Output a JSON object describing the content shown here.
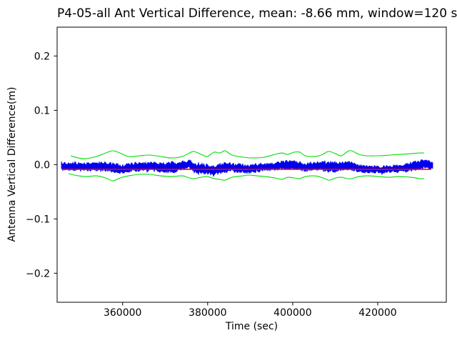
{
  "chart_data": {
    "type": "line",
    "title": "P4-05-all Ant Vertical Difference, mean: -8.66 mm, window=120 secs",
    "xlabel": "Time (sec)",
    "ylabel": "Antenna Vertical Difference(m)",
    "xlim": [
      344600,
      436120
    ],
    "ylim": [
      -0.2535,
      0.2531
    ],
    "xticks": [
      360000,
      380000,
      400000,
      420000
    ],
    "yticks": [
      0.2,
      0.1,
      0.0,
      -0.1,
      -0.2
    ],
    "grid": false,
    "legend": null,
    "mean_mm": -8.66,
    "window_secs": 120,
    "colors": {
      "data_band": "#0000ee",
      "mean_line": "#ff0000",
      "envelope": "#00dd00",
      "frame": "#000000"
    },
    "series": [
      {
        "name": "antenna-vertical-difference",
        "style": "noisy-band",
        "color": "#0000ee",
        "points": [
          [
            345600,
            -0.0036,
            0.0053
          ],
          [
            348000,
            -0.0036,
            0.0066
          ],
          [
            351300,
            -0.0049,
            0.0066
          ],
          [
            354700,
            -0.0036,
            0.0066
          ],
          [
            357700,
            -0.0049,
            0.0079
          ],
          [
            359700,
            -0.0088,
            0.0066
          ],
          [
            362200,
            -0.0049,
            0.0066
          ],
          [
            364800,
            -0.0036,
            0.0066
          ],
          [
            367300,
            -0.0036,
            0.0066
          ],
          [
            370100,
            -0.0049,
            0.0079
          ],
          [
            372300,
            -0.0049,
            0.0079
          ],
          [
            374500,
            -0.0009,
            0.0066
          ],
          [
            375800,
            0.0004,
            0.0066
          ],
          [
            377300,
            -0.0075,
            0.0079
          ],
          [
            379500,
            -0.0088,
            0.0079
          ],
          [
            381500,
            -0.0101,
            0.0079
          ],
          [
            383500,
            -0.0062,
            0.0079
          ],
          [
            385200,
            -0.0049,
            0.0066
          ],
          [
            387400,
            -0.0062,
            0.0066
          ],
          [
            389100,
            -0.0088,
            0.0066
          ],
          [
            391300,
            -0.0062,
            0.0066
          ],
          [
            393000,
            -0.0049,
            0.0066
          ],
          [
            394600,
            -0.0049,
            0.0053
          ],
          [
            396300,
            -0.0022,
            0.0066
          ],
          [
            398000,
            -0.0009,
            0.0066
          ],
          [
            399700,
            -0.0009,
            0.0066
          ],
          [
            401400,
            -0.0022,
            0.0066
          ],
          [
            403000,
            -0.0049,
            0.0066
          ],
          [
            404700,
            -0.0036,
            0.0053
          ],
          [
            406400,
            -0.0022,
            0.0066
          ],
          [
            408100,
            -0.0036,
            0.0079
          ],
          [
            409700,
            -0.0049,
            0.0079
          ],
          [
            411400,
            -0.0036,
            0.0066
          ],
          [
            413400,
            -0.0022,
            0.0066
          ],
          [
            415100,
            -0.0062,
            0.0053
          ],
          [
            417100,
            -0.0088,
            0.0053
          ],
          [
            419300,
            -0.0088,
            0.0053
          ],
          [
            421500,
            -0.0088,
            0.0053
          ],
          [
            423500,
            -0.0075,
            0.0053
          ],
          [
            425500,
            -0.0075,
            0.0053
          ],
          [
            427200,
            -0.0049,
            0.0066
          ],
          [
            428900,
            -0.0009,
            0.0066
          ],
          [
            430600,
            0.0004,
            0.0066
          ],
          [
            431900,
            -0.0009,
            0.0066
          ],
          [
            433000,
            -0.0022,
            0.0053
          ]
        ]
      },
      {
        "name": "mean-line",
        "style": "hline",
        "color": "#ff0000",
        "value": -0.00866,
        "x_start": 345700,
        "x_end": 432600
      },
      {
        "name": "upper-envelope",
        "style": "line",
        "color": "#00dd00",
        "points": [
          [
            347800,
            0.0162
          ],
          [
            349600,
            0.0122
          ],
          [
            351300,
            0.0109
          ],
          [
            353800,
            0.0149
          ],
          [
            356000,
            0.0214
          ],
          [
            357700,
            0.0254
          ],
          [
            359400,
            0.0214
          ],
          [
            361400,
            0.0149
          ],
          [
            363900,
            0.0162
          ],
          [
            366400,
            0.0175
          ],
          [
            368900,
            0.0149
          ],
          [
            371500,
            0.0122
          ],
          [
            374000,
            0.0149
          ],
          [
            375700,
            0.0214
          ],
          [
            376800,
            0.0241
          ],
          [
            378500,
            0.0188
          ],
          [
            379900,
            0.0149
          ],
          [
            381500,
            0.0228
          ],
          [
            382900,
            0.0214
          ],
          [
            384100,
            0.0254
          ],
          [
            385700,
            0.0175
          ],
          [
            388300,
            0.0136
          ],
          [
            390800,
            0.0122
          ],
          [
            393300,
            0.0136
          ],
          [
            395800,
            0.0188
          ],
          [
            397500,
            0.0214
          ],
          [
            398800,
            0.0188
          ],
          [
            400300,
            0.0228
          ],
          [
            401700,
            0.0228
          ],
          [
            403000,
            0.0162
          ],
          [
            405000,
            0.0149
          ],
          [
            406700,
            0.0175
          ],
          [
            407900,
            0.0228
          ],
          [
            408700,
            0.0241
          ],
          [
            410100,
            0.0201
          ],
          [
            411400,
            0.0162
          ],
          [
            412900,
            0.0241
          ],
          [
            413900,
            0.0254
          ],
          [
            415600,
            0.0188
          ],
          [
            417600,
            0.0162
          ],
          [
            420200,
            0.0162
          ],
          [
            422700,
            0.0175
          ],
          [
            425200,
            0.0188
          ],
          [
            427700,
            0.0201
          ],
          [
            429900,
            0.0214
          ],
          [
            430900,
            0.0214
          ]
        ]
      },
      {
        "name": "lower-envelope",
        "style": "line",
        "color": "#00dd00",
        "points": [
          [
            347300,
            -0.0167
          ],
          [
            349600,
            -0.0207
          ],
          [
            351600,
            -0.022
          ],
          [
            353800,
            -0.0207
          ],
          [
            356000,
            -0.0246
          ],
          [
            357700,
            -0.0299
          ],
          [
            359400,
            -0.0246
          ],
          [
            361400,
            -0.0207
          ],
          [
            363900,
            -0.018
          ],
          [
            366400,
            -0.018
          ],
          [
            368900,
            -0.0207
          ],
          [
            371500,
            -0.022
          ],
          [
            374000,
            -0.0207
          ],
          [
            375700,
            -0.0246
          ],
          [
            376800,
            -0.0259
          ],
          [
            378500,
            -0.0233
          ],
          [
            379900,
            -0.022
          ],
          [
            381500,
            -0.0259
          ],
          [
            382900,
            -0.0272
          ],
          [
            384100,
            -0.0286
          ],
          [
            385700,
            -0.0233
          ],
          [
            388300,
            -0.0207
          ],
          [
            389600,
            -0.0193
          ],
          [
            391600,
            -0.0207
          ],
          [
            393600,
            -0.022
          ],
          [
            395800,
            -0.0246
          ],
          [
            397500,
            -0.0272
          ],
          [
            398800,
            -0.0233
          ],
          [
            400300,
            -0.0246
          ],
          [
            401700,
            -0.0259
          ],
          [
            403000,
            -0.022
          ],
          [
            405000,
            -0.0207
          ],
          [
            406700,
            -0.0233
          ],
          [
            407900,
            -0.0272
          ],
          [
            408700,
            -0.0286
          ],
          [
            410100,
            -0.0246
          ],
          [
            411400,
            -0.0233
          ],
          [
            412900,
            -0.0259
          ],
          [
            413900,
            -0.0259
          ],
          [
            415600,
            -0.022
          ],
          [
            417600,
            -0.0207
          ],
          [
            420200,
            -0.022
          ],
          [
            422700,
            -0.0233
          ],
          [
            425200,
            -0.022
          ],
          [
            427700,
            -0.0233
          ],
          [
            429900,
            -0.0259
          ],
          [
            430900,
            -0.0259
          ]
        ]
      }
    ]
  }
}
